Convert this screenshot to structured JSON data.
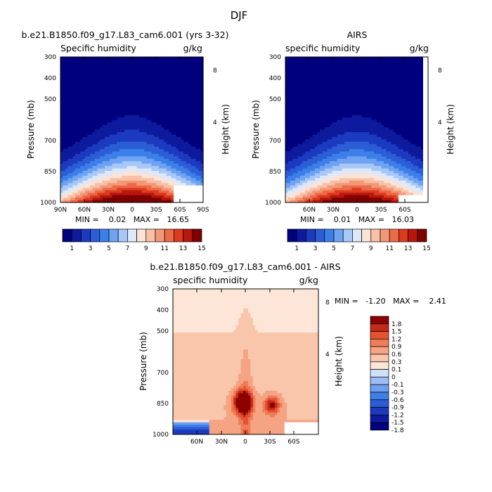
{
  "figure_title": "DJF",
  "colors": {
    "levels_15": [
      "#00007f",
      "#0d1a9e",
      "#1c3abf",
      "#2b5ed6",
      "#3d7fe8",
      "#6fa3f2",
      "#a7c8f7",
      "#dde8fb",
      "#fbe3d6",
      "#f8c0a6",
      "#f39877",
      "#ec6a48",
      "#dc3b20",
      "#b8170c",
      "#7f0000"
    ],
    "levels_diff": [
      "#00007f",
      "#0d1a9e",
      "#1c3abf",
      "#2b5ed6",
      "#3d7fe8",
      "#6f9ff0",
      "#9fbdf4",
      "#cfe0fa",
      "#fde6d7",
      "#f9c6ab",
      "#f5a483",
      "#ef7d58",
      "#e4522f",
      "#c52a15",
      "#8b0000"
    ]
  },
  "chart_data": [
    {
      "type": "contour",
      "title": "b.e21.B1850.f09_g17.L83_cam6.001 (yrs 3-32)",
      "left_label": "Specific humidity",
      "units": "g/kg",
      "ylabel": "Pressure (mb)",
      "ylabel_right": "Height (km)",
      "y_ticks": [
        "300",
        "400",
        "500",
        "700",
        "850",
        "1000"
      ],
      "y_ticks_right": [
        "8",
        "4"
      ],
      "x_ticks": [
        "90N",
        "60N",
        "30N",
        "0",
        "30S",
        "60S",
        "90S"
      ],
      "stats": "MIN =    0.02   MAX =   16.65",
      "min": 0.02,
      "max": 16.65,
      "colorbar_labels": [
        "1",
        "3",
        "5",
        "7",
        "9",
        "11",
        "13",
        "15"
      ]
    },
    {
      "type": "contour",
      "title": "AIRS",
      "left_label": "specific humidity",
      "units": "g/kg",
      "ylabel": "Pressure (mb)",
      "ylabel_right": "Height (km)",
      "y_ticks": [
        "300",
        "400",
        "500",
        "700",
        "850",
        "1000"
      ],
      "y_ticks_right": [
        "8",
        "4"
      ],
      "x_ticks": [
        "60N",
        "30N",
        "0",
        "30S",
        "60S"
      ],
      "stats": "MIN =    0.01   MAX =   16.03",
      "min": 0.01,
      "max": 16.03,
      "colorbar_labels": [
        "1",
        "3",
        "5",
        "7",
        "9",
        "11",
        "13",
        "15"
      ]
    },
    {
      "type": "contour",
      "title": "b.e21.B1850.f09_g17.L83_cam6.001 - AIRS",
      "left_label": "specific humidity",
      "units": "g/kg",
      "ylabel": "Pressure (mb)",
      "ylabel_right": "Height (km)",
      "y_ticks": [
        "300",
        "400",
        "500",
        "700",
        "850",
        "1000"
      ],
      "y_ticks_right": [
        "8",
        "4"
      ],
      "x_ticks": [
        "60N",
        "30N",
        "0",
        "30S",
        "60S"
      ],
      "stats": "MIN =   -1.20   MAX =    2.41",
      "min": -1.2,
      "max": 2.41,
      "colorbar_labels": [
        "1.8",
        "1.5",
        "1.2",
        "0.9",
        "0.6",
        "0.3",
        "0.1",
        "0",
        "-0.1",
        "-0.3",
        "-0.6",
        "-0.9",
        "-1.2",
        "-1.5",
        "-1.8"
      ]
    }
  ]
}
